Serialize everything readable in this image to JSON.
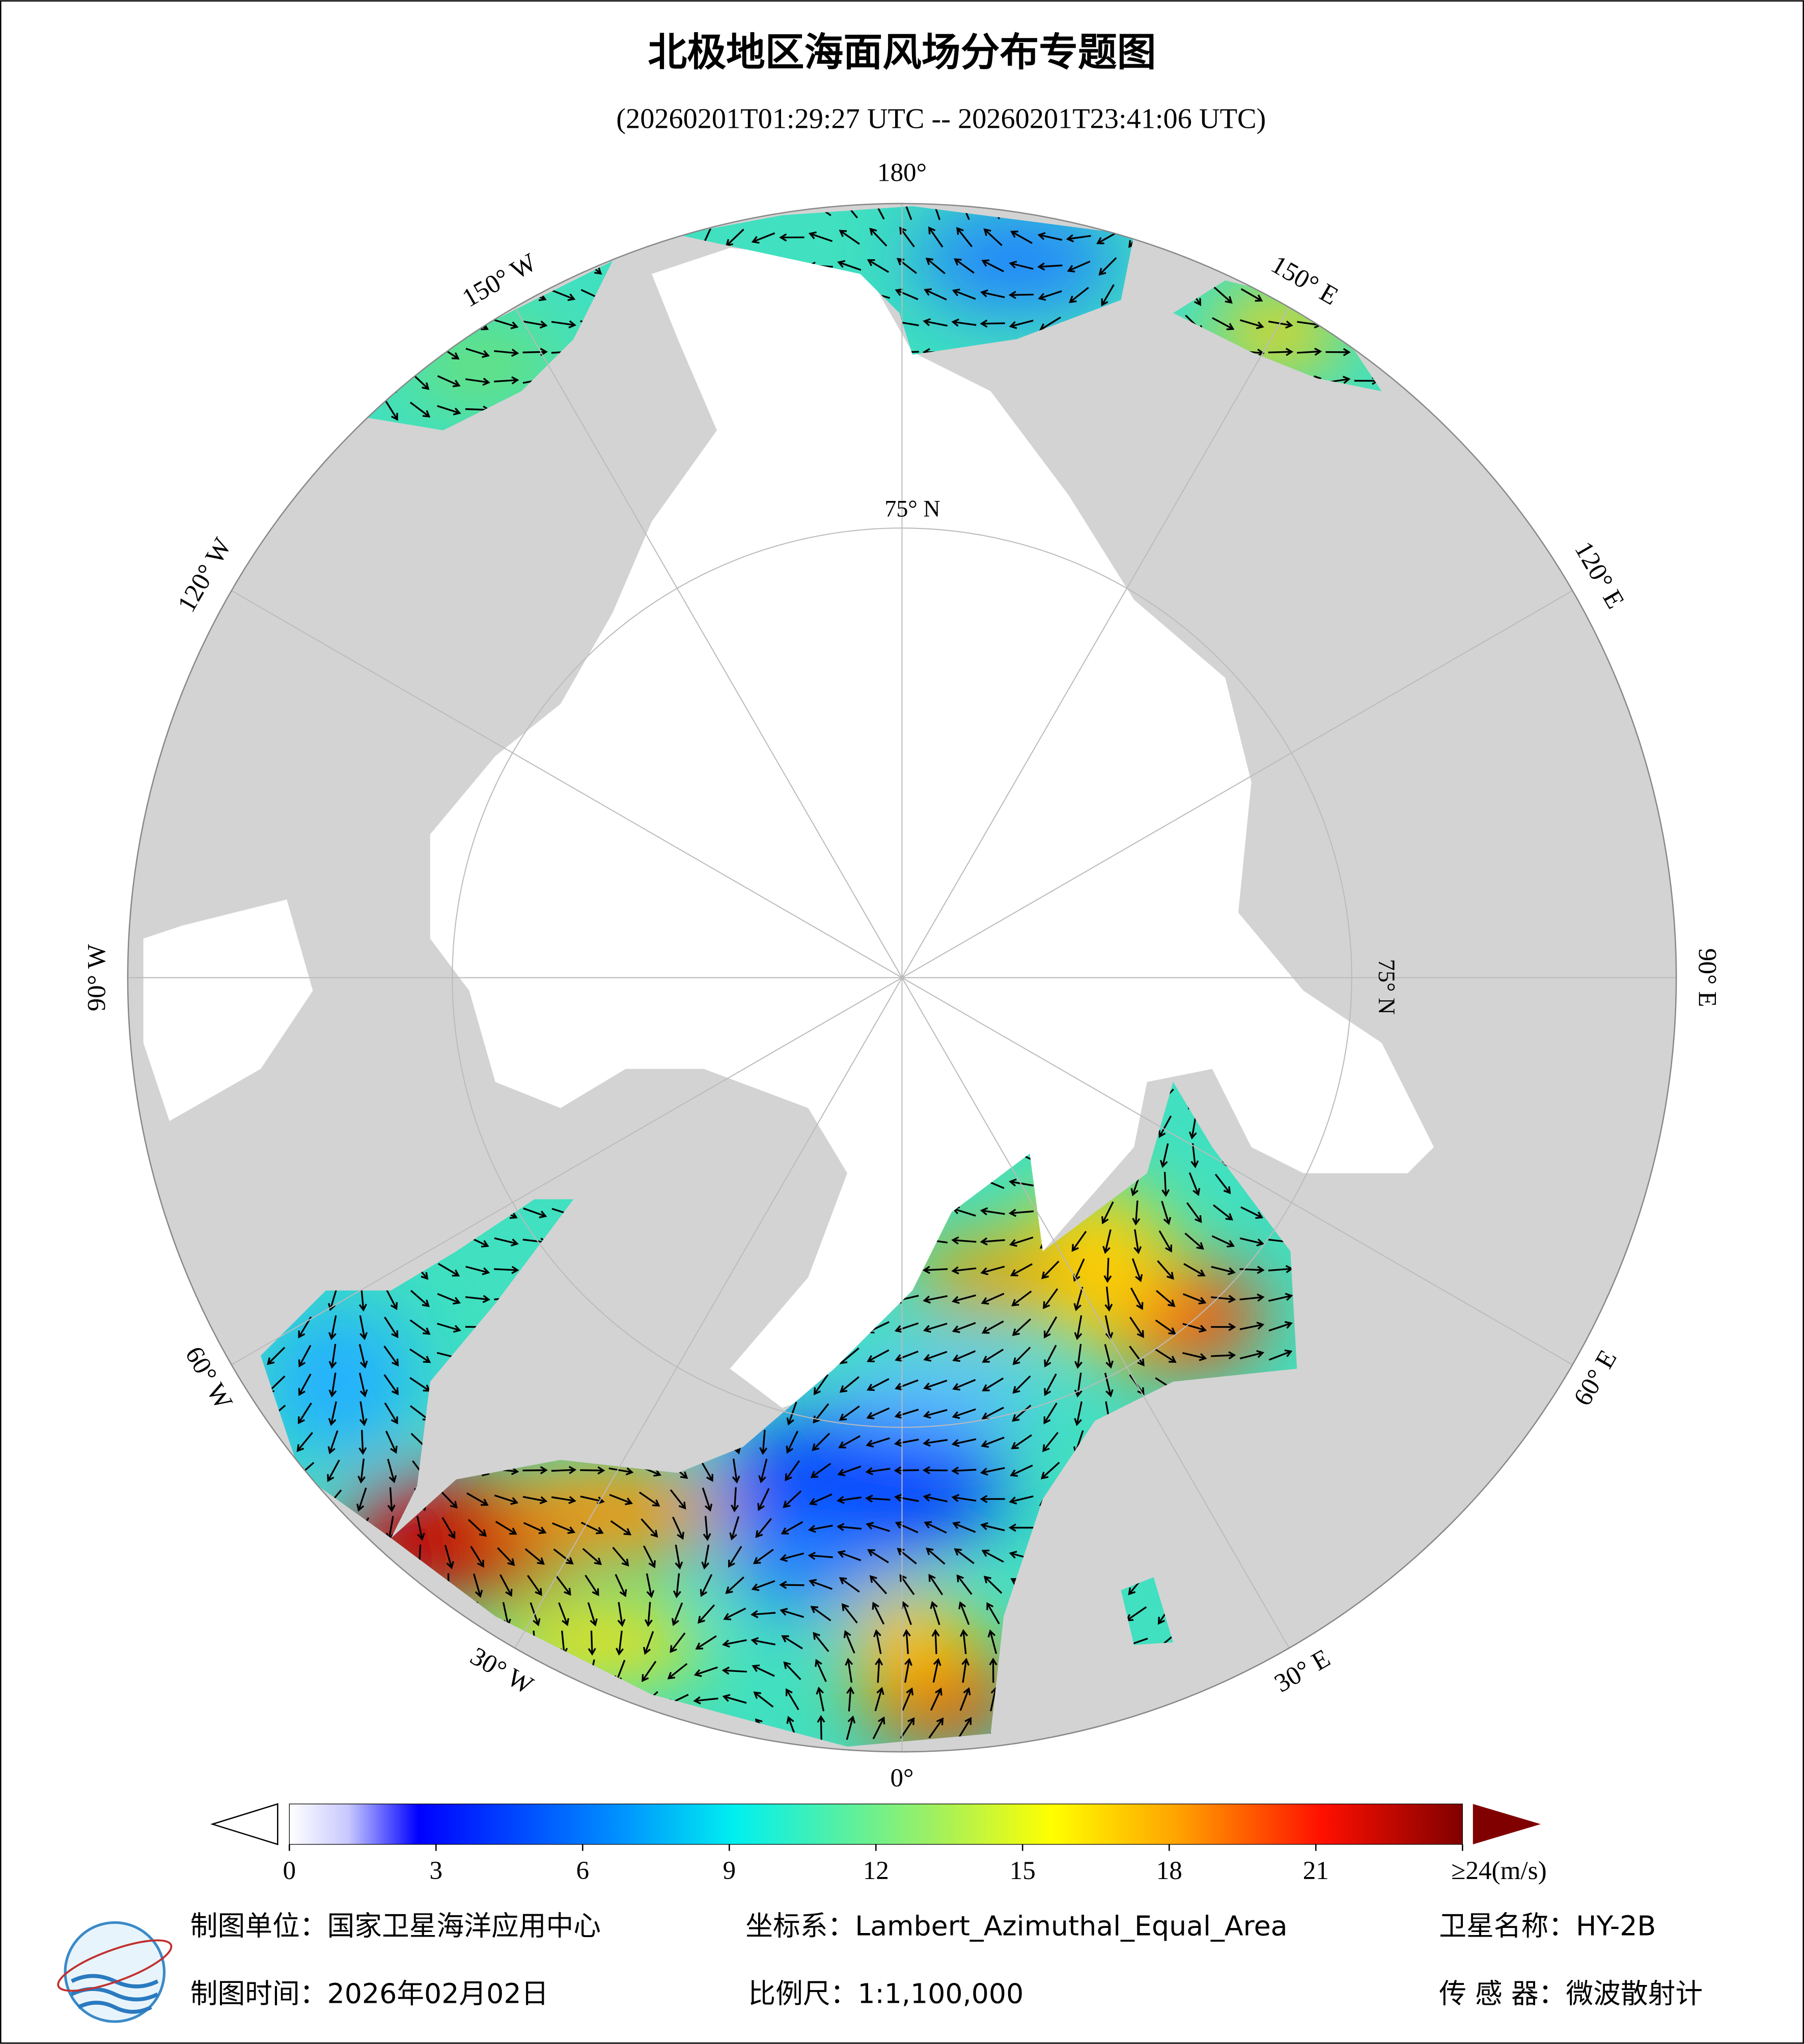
{
  "header": {
    "title": "北极地区海面风场分布专题图",
    "subtitle": "(20260201T01:29:27 UTC -- 20260201T23:41:06 UTC)"
  },
  "map": {
    "lon_labels": [
      "180°",
      "150° E",
      "120° E",
      "90° E",
      "60° E",
      "30° E",
      "0°",
      "30° W",
      "60° W",
      "90° W",
      "120° W",
      "150° W"
    ],
    "lat_label": "75° N"
  },
  "colorbar": {
    "lim": [
      0,
      24
    ],
    "ticks": [
      0,
      3,
      6,
      9,
      12,
      15,
      18,
      21,
      {
        "value": 24,
        "label": "≥24(m/s)"
      }
    ]
  },
  "footer": {
    "unit": "制图单位：国家卫星海洋应用中心",
    "crs": "坐标系：Lambert_Azimuthal_Equal_Area",
    "satellite": "卫星名称：HY-2B",
    "date": "制图时间：2026年02月02日",
    "scale": "比例尺：1:1,100,000",
    "sensor": "传 感 器：微波散射计"
  }
}
